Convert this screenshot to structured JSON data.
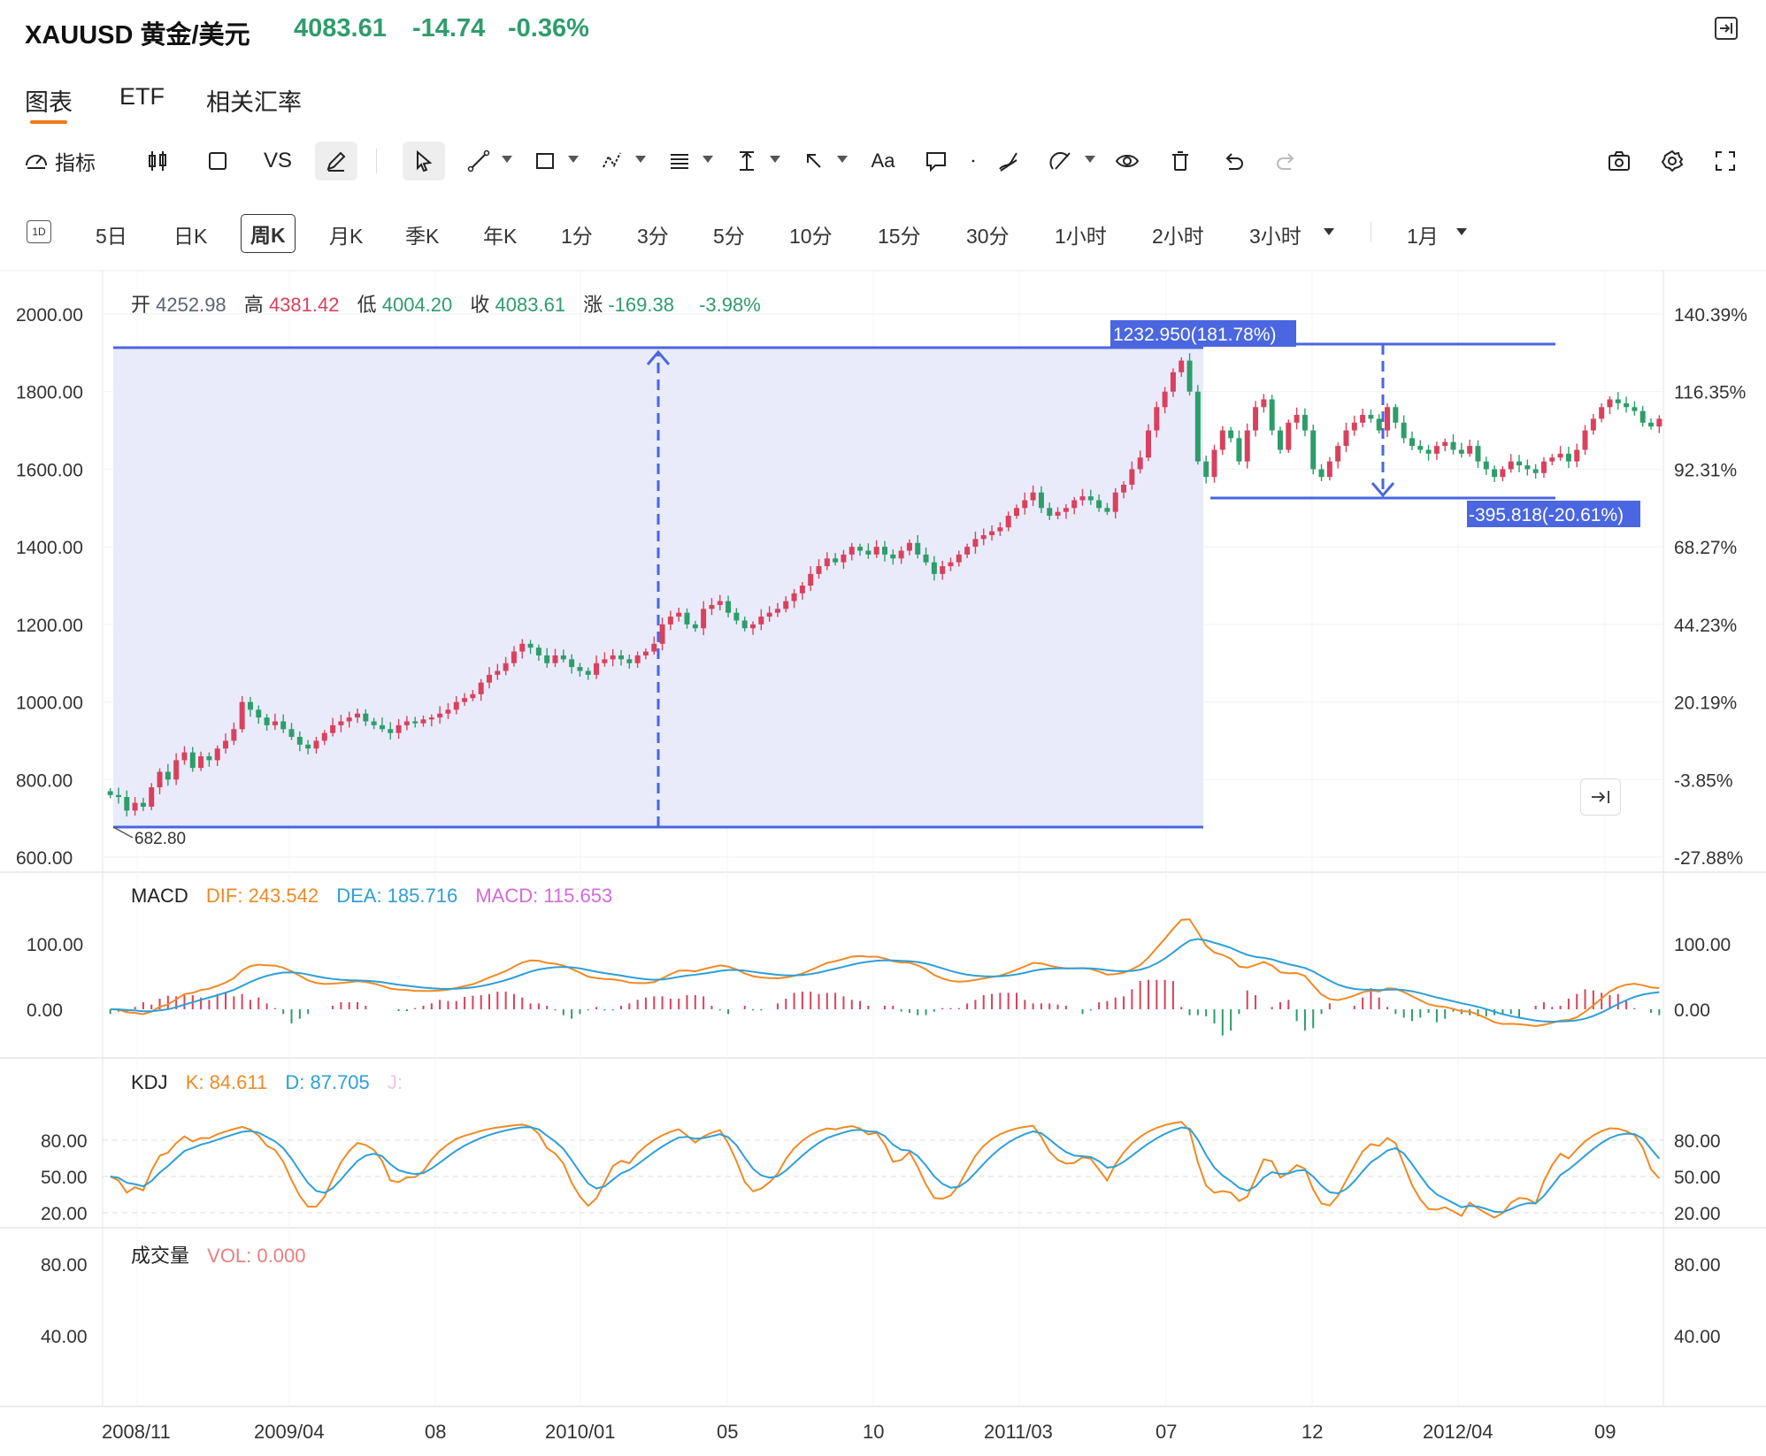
{
  "header": {
    "symbol": "XAUUSD 黄金/美元",
    "price": "4083.61",
    "change": "-14.74",
    "change_pct": "-0.36%",
    "up_color": "#2e9d6a",
    "down_color": "#d9415d"
  },
  "tabs": [
    {
      "label": "图表",
      "active": true
    },
    {
      "label": "ETF",
      "active": false
    },
    {
      "label": "相关汇率",
      "active": false
    }
  ],
  "toolbar": {
    "indicators_label": "指标",
    "vs_label": "VS",
    "text_label": "Aa",
    "icons": [
      "gauge-icon",
      "candlestick-icon",
      "square-icon",
      "vs",
      "pencil-icon",
      "cursor-icon",
      "line-icon",
      "rectangle-icon",
      "pattern-icon",
      "fib-icon",
      "measure-icon",
      "arrow-icon",
      "text-icon",
      "comment-icon",
      "dot-icon",
      "brush-icon",
      "shape-icon",
      "eye-icon",
      "trash-icon",
      "undo-icon",
      "redo-icon",
      "camera-icon",
      "gear-icon",
      "fullscreen-icon"
    ]
  },
  "periods": {
    "items": [
      "5日",
      "日K",
      "周K",
      "月K",
      "季K",
      "年K",
      "1分",
      "3分",
      "5分",
      "10分",
      "15分",
      "30分",
      "1小时",
      "2小时",
      "3小时"
    ],
    "active": "周K",
    "range": "1月"
  },
  "ohlc": {
    "open_label": "开",
    "open": "4252.98",
    "high_label": "高",
    "high": "4381.42",
    "low_label": "低",
    "low": "4004.20",
    "close_label": "收",
    "close": "4083.61",
    "chg_label": "涨",
    "chg": "-169.38",
    "chg_pct": "-3.98%"
  },
  "macd": {
    "name": "MACD",
    "dif": "DIF: 243.542",
    "dea": "DEA: 185.716",
    "macd": "MACD: 115.653",
    "dif_color": "#f08a24",
    "dea_color": "#2e9fd8",
    "macd_color": "#d46ad6"
  },
  "kdj": {
    "name": "KDJ",
    "k": "K: 84.611",
    "d": "D: 87.705",
    "j": "J:"
  },
  "volume": {
    "name": "成交量",
    "vol": "VOL: 0.000"
  },
  "measurements": {
    "up_label": "1232.950(181.78%)",
    "down_label": "-395.818(-20.61%)",
    "low_marker": "682.80"
  },
  "chart_data": [
    {
      "type": "candlestick",
      "x_ticks": [
        "2008/11",
        "2009/04",
        "08",
        "2010/01",
        "05",
        "10",
        "2011/03",
        "07",
        "12",
        "2012/04",
        "09"
      ],
      "y_ticks_left": [
        "2000.00",
        "1800.00",
        "1600.00",
        "1400.00",
        "1200.00",
        "1000.00",
        "800.00",
        "600.00"
      ],
      "y_ticks_right": [
        "140.39%",
        "116.35%",
        "92.31%",
        "68.27%",
        "44.23%",
        "20.19%",
        "-3.85%",
        "-27.88%"
      ],
      "ylim": [
        600,
        2000
      ],
      "close": [
        760,
        755,
        720,
        740,
        730,
        780,
        820,
        800,
        850,
        870,
        830,
        860,
        850,
        880,
        900,
        930,
        1000,
        980,
        960,
        940,
        950,
        930,
        910,
        890,
        880,
        900,
        920,
        940,
        950,
        960,
        970,
        950,
        940,
        930,
        920,
        940,
        950,
        945,
        955,
        960,
        970,
        980,
        1000,
        1010,
        1020,
        1050,
        1070,
        1080,
        1100,
        1130,
        1150,
        1140,
        1120,
        1100,
        1120,
        1110,
        1090,
        1080,
        1070,
        1100,
        1110,
        1120,
        1110,
        1100,
        1120,
        1130,
        1150,
        1200,
        1220,
        1230,
        1200,
        1190,
        1240,
        1250,
        1260,
        1230,
        1210,
        1190,
        1200,
        1220,
        1230,
        1240,
        1260,
        1280,
        1300,
        1330,
        1350,
        1370,
        1360,
        1380,
        1400,
        1390,
        1380,
        1400,
        1380,
        1370,
        1390,
        1410,
        1380,
        1360,
        1330,
        1350,
        1360,
        1380,
        1400,
        1420,
        1430,
        1440,
        1450,
        1480,
        1500,
        1520,
        1540,
        1500,
        1480,
        1490,
        1500,
        1520,
        1530,
        1520,
        1500,
        1490,
        1540,
        1560,
        1600,
        1630,
        1700,
        1760,
        1800,
        1850,
        1880,
        1800,
        1620,
        1580,
        1650,
        1700,
        1680,
        1620,
        1700,
        1760,
        1780,
        1700,
        1650,
        1720,
        1740,
        1700,
        1600,
        1580,
        1620,
        1660,
        1700,
        1720,
        1740,
        1730,
        1700,
        1760,
        1720,
        1680,
        1660,
        1650,
        1640,
        1660,
        1670,
        1650,
        1640,
        1660,
        1620,
        1600,
        1580,
        1600,
        1620,
        1610,
        1600,
        1590,
        1620,
        1630,
        1640,
        1620,
        1650,
        1700,
        1730,
        1760,
        1780,
        1770,
        1760,
        1750,
        1720,
        1710,
        1730
      ]
    },
    {
      "type": "bar",
      "name": "MACD",
      "y_ticks": [
        "100.00",
        "0.00"
      ],
      "ylim": [
        -60,
        130
      ]
    },
    {
      "type": "line",
      "name": "KDJ",
      "y_ticks": [
        "80.00",
        "50.00",
        "20.00"
      ],
      "ylim": [
        10,
        100
      ]
    },
    {
      "type": "bar",
      "name": "成交量",
      "y_ticks": [
        "80.00",
        "40.00"
      ]
    }
  ]
}
